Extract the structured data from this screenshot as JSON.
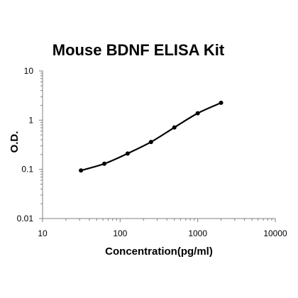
{
  "chart_data": {
    "type": "line",
    "title": "Mouse BDNF ELISA Kit",
    "xlabel": "Concentration(pg/ml)",
    "ylabel": "O.D.",
    "x_scale": "log",
    "y_scale": "log",
    "xlim": [
      10,
      10000
    ],
    "ylim": [
      0.01,
      10
    ],
    "x_ticks": [
      "10",
      "100",
      "1000",
      "10000"
    ],
    "y_ticks": [
      "0.01",
      "0.1",
      "1",
      "10"
    ],
    "grid": false,
    "legend": "none",
    "series": [
      {
        "x": [
          31.25,
          62.5,
          125,
          250,
          500,
          1000,
          2000
        ],
        "y": [
          0.095,
          0.13,
          0.21,
          0.36,
          0.71,
          1.38,
          2.25
        ]
      }
    ],
    "colors": {
      "line": "#000000",
      "marker": "#000000",
      "axis": "#808080"
    }
  }
}
